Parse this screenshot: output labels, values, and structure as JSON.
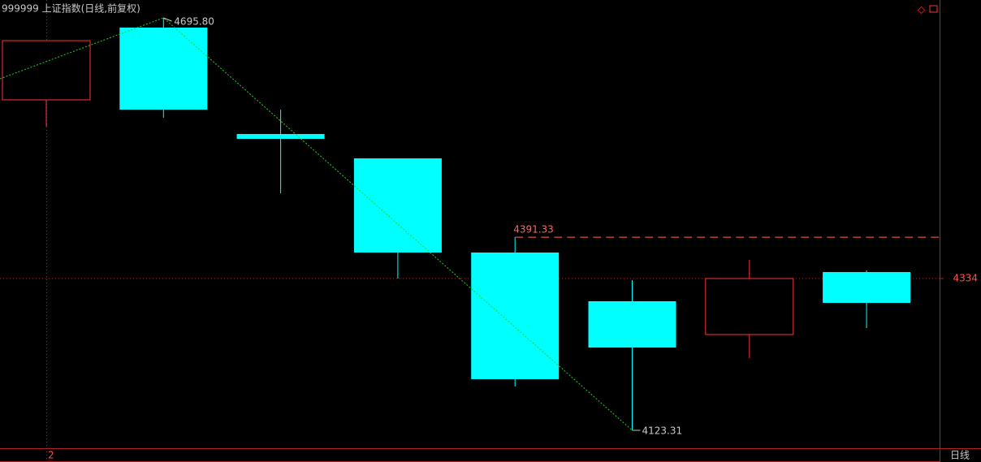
{
  "chart_data": {
    "type": "candlestick",
    "title": "999999 上证指数(日线,前复权)",
    "period_label": "日线",
    "x_marker": "2",
    "up_color": "#ff3232",
    "down_color": "#00ffff",
    "series": [
      {
        "open": [
          4582.0,
          4682.3,
          4534.6,
          4500.8,
          4370.1,
          4302.5,
          4256.3,
          4343.0
        ],
        "high": [
          4664.2,
          4695.8,
          4568.4,
          4500.8,
          4391.33,
          4331.8,
          4360.0,
          4345.3
        ],
        "low": [
          4544.8,
          4557.2,
          4452.4,
          4334.0,
          4184.1,
          4123.31,
          4223.6,
          4265.3
        ],
        "close": [
          4664.2,
          4568.4,
          4527.9,
          4370.1,
          4194.3,
          4238.2,
          4334.0,
          4300.2
        ]
      }
    ],
    "ylim": [
      4098.5,
      4720.6
    ],
    "yticks": [
      4334
    ],
    "annotations": [
      {
        "value": 4695.8,
        "label": "4695.80"
      },
      {
        "value": 4123.31,
        "label": "4123.31"
      },
      {
        "value": 4391.33,
        "label": "4391.33"
      }
    ]
  }
}
